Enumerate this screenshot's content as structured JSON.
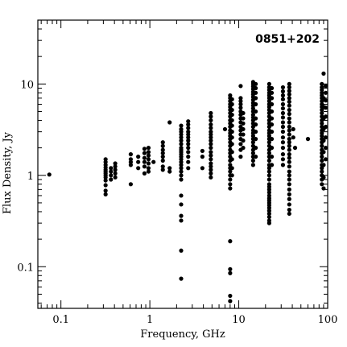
{
  "chart_data": {
    "type": "scatter",
    "title": "0851+202",
    "xlabel": "Frequency, GHz",
    "ylabel": "Flux Density, Jy",
    "x_scale": "log",
    "y_scale": "log",
    "xlim": [
      0.055,
      100
    ],
    "ylim": [
      0.035,
      50
    ],
    "x_ticks": [
      0.1,
      1,
      10,
      100
    ],
    "x_tick_labels": [
      "0.1",
      "1",
      "10",
      "100"
    ],
    "y_ticks": [
      0.1,
      1,
      10
    ],
    "y_tick_labels": [
      "0.1",
      "1",
      "10"
    ],
    "grid": false,
    "marker_color": "#000000",
    "columns": [
      {
        "x": 0.074,
        "values": [
          1.02
        ]
      },
      {
        "x": 0.318,
        "values": [
          0.62,
          0.68,
          0.78,
          0.88,
          0.95,
          1.0,
          1.05,
          1.1,
          1.15,
          1.22,
          1.3,
          1.4,
          1.5
        ]
      },
      {
        "x": 0.365,
        "values": [
          0.9,
          1.0,
          1.1,
          1.2
        ]
      },
      {
        "x": 0.408,
        "values": [
          0.95,
          1.05,
          1.15,
          1.25,
          1.35
        ]
      },
      {
        "x": 0.61,
        "values": [
          0.8,
          1.3,
          1.4,
          1.5,
          1.7
        ]
      },
      {
        "x": 0.74,
        "values": [
          1.2,
          1.4,
          1.6
        ]
      },
      {
        "x": 0.87,
        "values": [
          1.05,
          1.25,
          1.4,
          1.55,
          1.75,
          1.95
        ]
      },
      {
        "x": 0.966,
        "values": [
          1.1,
          1.2,
          1.35,
          1.5,
          1.65,
          1.8,
          2.0
        ]
      },
      {
        "x": 1.1,
        "values": [
          1.4
        ]
      },
      {
        "x": 1.4,
        "values": [
          1.15,
          1.25,
          1.45,
          1.6,
          1.75,
          1.9,
          2.1,
          2.3
        ]
      },
      {
        "x": 1.67,
        "values": [
          1.1,
          1.2,
          3.8
        ]
      },
      {
        "x": 2.25,
        "values": [
          0.074,
          0.15,
          0.32,
          0.36,
          0.48,
          0.6,
          0.9,
          1.0,
          1.1,
          1.2,
          1.3,
          1.4,
          1.5,
          1.6,
          1.7,
          1.8,
          1.9,
          2.0,
          2.2,
          2.4,
          2.6,
          2.8,
          3.0,
          3.2,
          3.5
        ]
      },
      {
        "x": 2.7,
        "values": [
          1.2,
          1.4,
          1.6,
          1.8,
          2.0,
          2.2,
          2.4,
          2.6,
          2.8,
          3.0,
          3.3,
          3.6,
          3.9
        ]
      },
      {
        "x": 3.9,
        "values": [
          1.2,
          1.6,
          1.85
        ]
      },
      {
        "x": 4.85,
        "values": [
          0.95,
          1.05,
          1.15,
          1.25,
          1.35,
          1.5,
          1.65,
          1.8,
          2.0,
          2.2,
          2.4,
          2.6,
          2.8,
          3.0,
          3.3,
          3.6,
          4.0,
          4.4,
          4.8
        ]
      },
      {
        "x": 7.0,
        "values": [
          3.2
        ]
      },
      {
        "x": 8.0,
        "values": [
          0.042,
          0.048,
          0.085,
          0.094,
          0.19,
          0.72,
          0.8,
          0.9,
          1.0,
          1.1,
          1.2,
          1.3,
          1.45,
          1.6,
          1.75,
          1.9,
          2.1,
          2.3,
          2.5,
          2.7,
          2.9,
          3.1,
          3.4,
          3.7,
          4.0,
          4.4,
          4.8,
          5.2,
          5.6,
          6.0,
          6.5,
          7.0,
          7.5
        ]
      },
      {
        "x": 8.4,
        "values": [
          1.0,
          1.2,
          1.5,
          1.8,
          2.2,
          2.6,
          3.0,
          3.5,
          4.0,
          4.6,
          5.2,
          6.0,
          6.8
        ]
      },
      {
        "x": 10.5,
        "values": [
          1.6,
          1.9,
          2.2,
          2.5,
          2.8,
          3.1,
          3.4,
          3.8,
          4.2,
          4.6,
          5.0,
          5.5,
          6.0,
          6.5,
          7.0,
          9.5
        ]
      },
      {
        "x": 11.2,
        "values": [
          2.0,
          2.4,
          2.8,
          3.2,
          3.7,
          4.2,
          4.8
        ]
      },
      {
        "x": 14.5,
        "values": [
          1.3,
          1.45,
          1.6,
          1.75,
          1.9,
          2.1,
          2.3,
          2.5,
          2.7,
          2.9,
          3.1,
          3.4,
          3.7,
          4.0,
          4.3,
          4.6,
          5.0,
          5.4,
          5.8,
          6.2,
          6.7,
          7.2,
          7.7,
          8.2,
          8.8,
          9.4,
          10.0,
          10.5
        ]
      },
      {
        "x": 15.5,
        "values": [
          1.6,
          2.0,
          2.5,
          3.0,
          3.6,
          4.2,
          5.0,
          6.0,
          7.0,
          8.0,
          9.0,
          10.0
        ]
      },
      {
        "x": 22.0,
        "values": [
          0.3,
          0.32,
          0.35,
          0.38,
          0.41,
          0.44,
          0.47,
          0.5,
          0.53,
          0.56,
          0.6,
          0.65,
          0.7,
          0.75,
          0.8,
          0.9,
          1.0,
          1.1,
          1.2,
          1.3,
          1.45,
          1.6,
          1.75,
          1.9,
          2.1,
          2.3,
          2.5,
          2.7,
          2.9,
          3.1,
          3.4,
          3.7,
          4.0,
          4.4,
          4.8,
          5.2,
          5.6,
          6.0,
          6.5,
          7.0,
          7.5,
          8.0,
          8.6,
          9.2,
          10.0
        ]
      },
      {
        "x": 23.5,
        "values": [
          1.3,
          1.6,
          2.0,
          2.5,
          3.0,
          3.6,
          4.2,
          5.0,
          6.0,
          7.0,
          8.0,
          9.0
        ]
      },
      {
        "x": 31.4,
        "values": [
          1.3,
          1.5,
          1.7,
          2.0,
          2.3,
          2.6,
          3.0,
          3.4,
          3.8,
          4.3,
          4.8,
          5.4,
          6.0,
          6.8,
          7.5,
          8.3,
          9.2
        ]
      },
      {
        "x": 37.0,
        "values": [
          0.38,
          0.42,
          0.48,
          0.55,
          0.62,
          0.7,
          0.8,
          0.9,
          1.0,
          1.1,
          1.25,
          1.4,
          1.55,
          1.7,
          1.9,
          2.1,
          2.3,
          2.5,
          2.8,
          3.1,
          3.4,
          3.8,
          4.2,
          4.7,
          5.2,
          5.8,
          6.4,
          7.0,
          7.7,
          8.4,
          9.2,
          10.0
        ]
      },
      {
        "x": 41.0,
        "values": [
          2.6,
          3.2
        ]
      },
      {
        "x": 43.0,
        "values": [
          2.0
        ]
      },
      {
        "x": 60.0,
        "values": [
          2.5
        ]
      },
      {
        "x": 86.0,
        "values": [
          0.8,
          0.9,
          1.0,
          1.1,
          1.2,
          1.3,
          1.45,
          1.6,
          1.75,
          1.9,
          2.1,
          2.3,
          2.5,
          2.7,
          2.9,
          3.1,
          3.4,
          3.7,
          4.0,
          4.4,
          4.8,
          5.2,
          5.6,
          6.0,
          6.5,
          7.0,
          7.5,
          8.0,
          8.6,
          9.2,
          10.0
        ]
      },
      {
        "x": 90.0,
        "values": [
          0.72,
          0.95,
          1.3,
          1.8,
          2.4,
          3.2,
          4.2,
          5.6,
          7.0,
          13.0
        ]
      },
      {
        "x": 95.0,
        "values": [
          1.5,
          2.0,
          2.6,
          3.4,
          4.4,
          5.5,
          6.6,
          8.0,
          9.5
        ]
      }
    ]
  }
}
